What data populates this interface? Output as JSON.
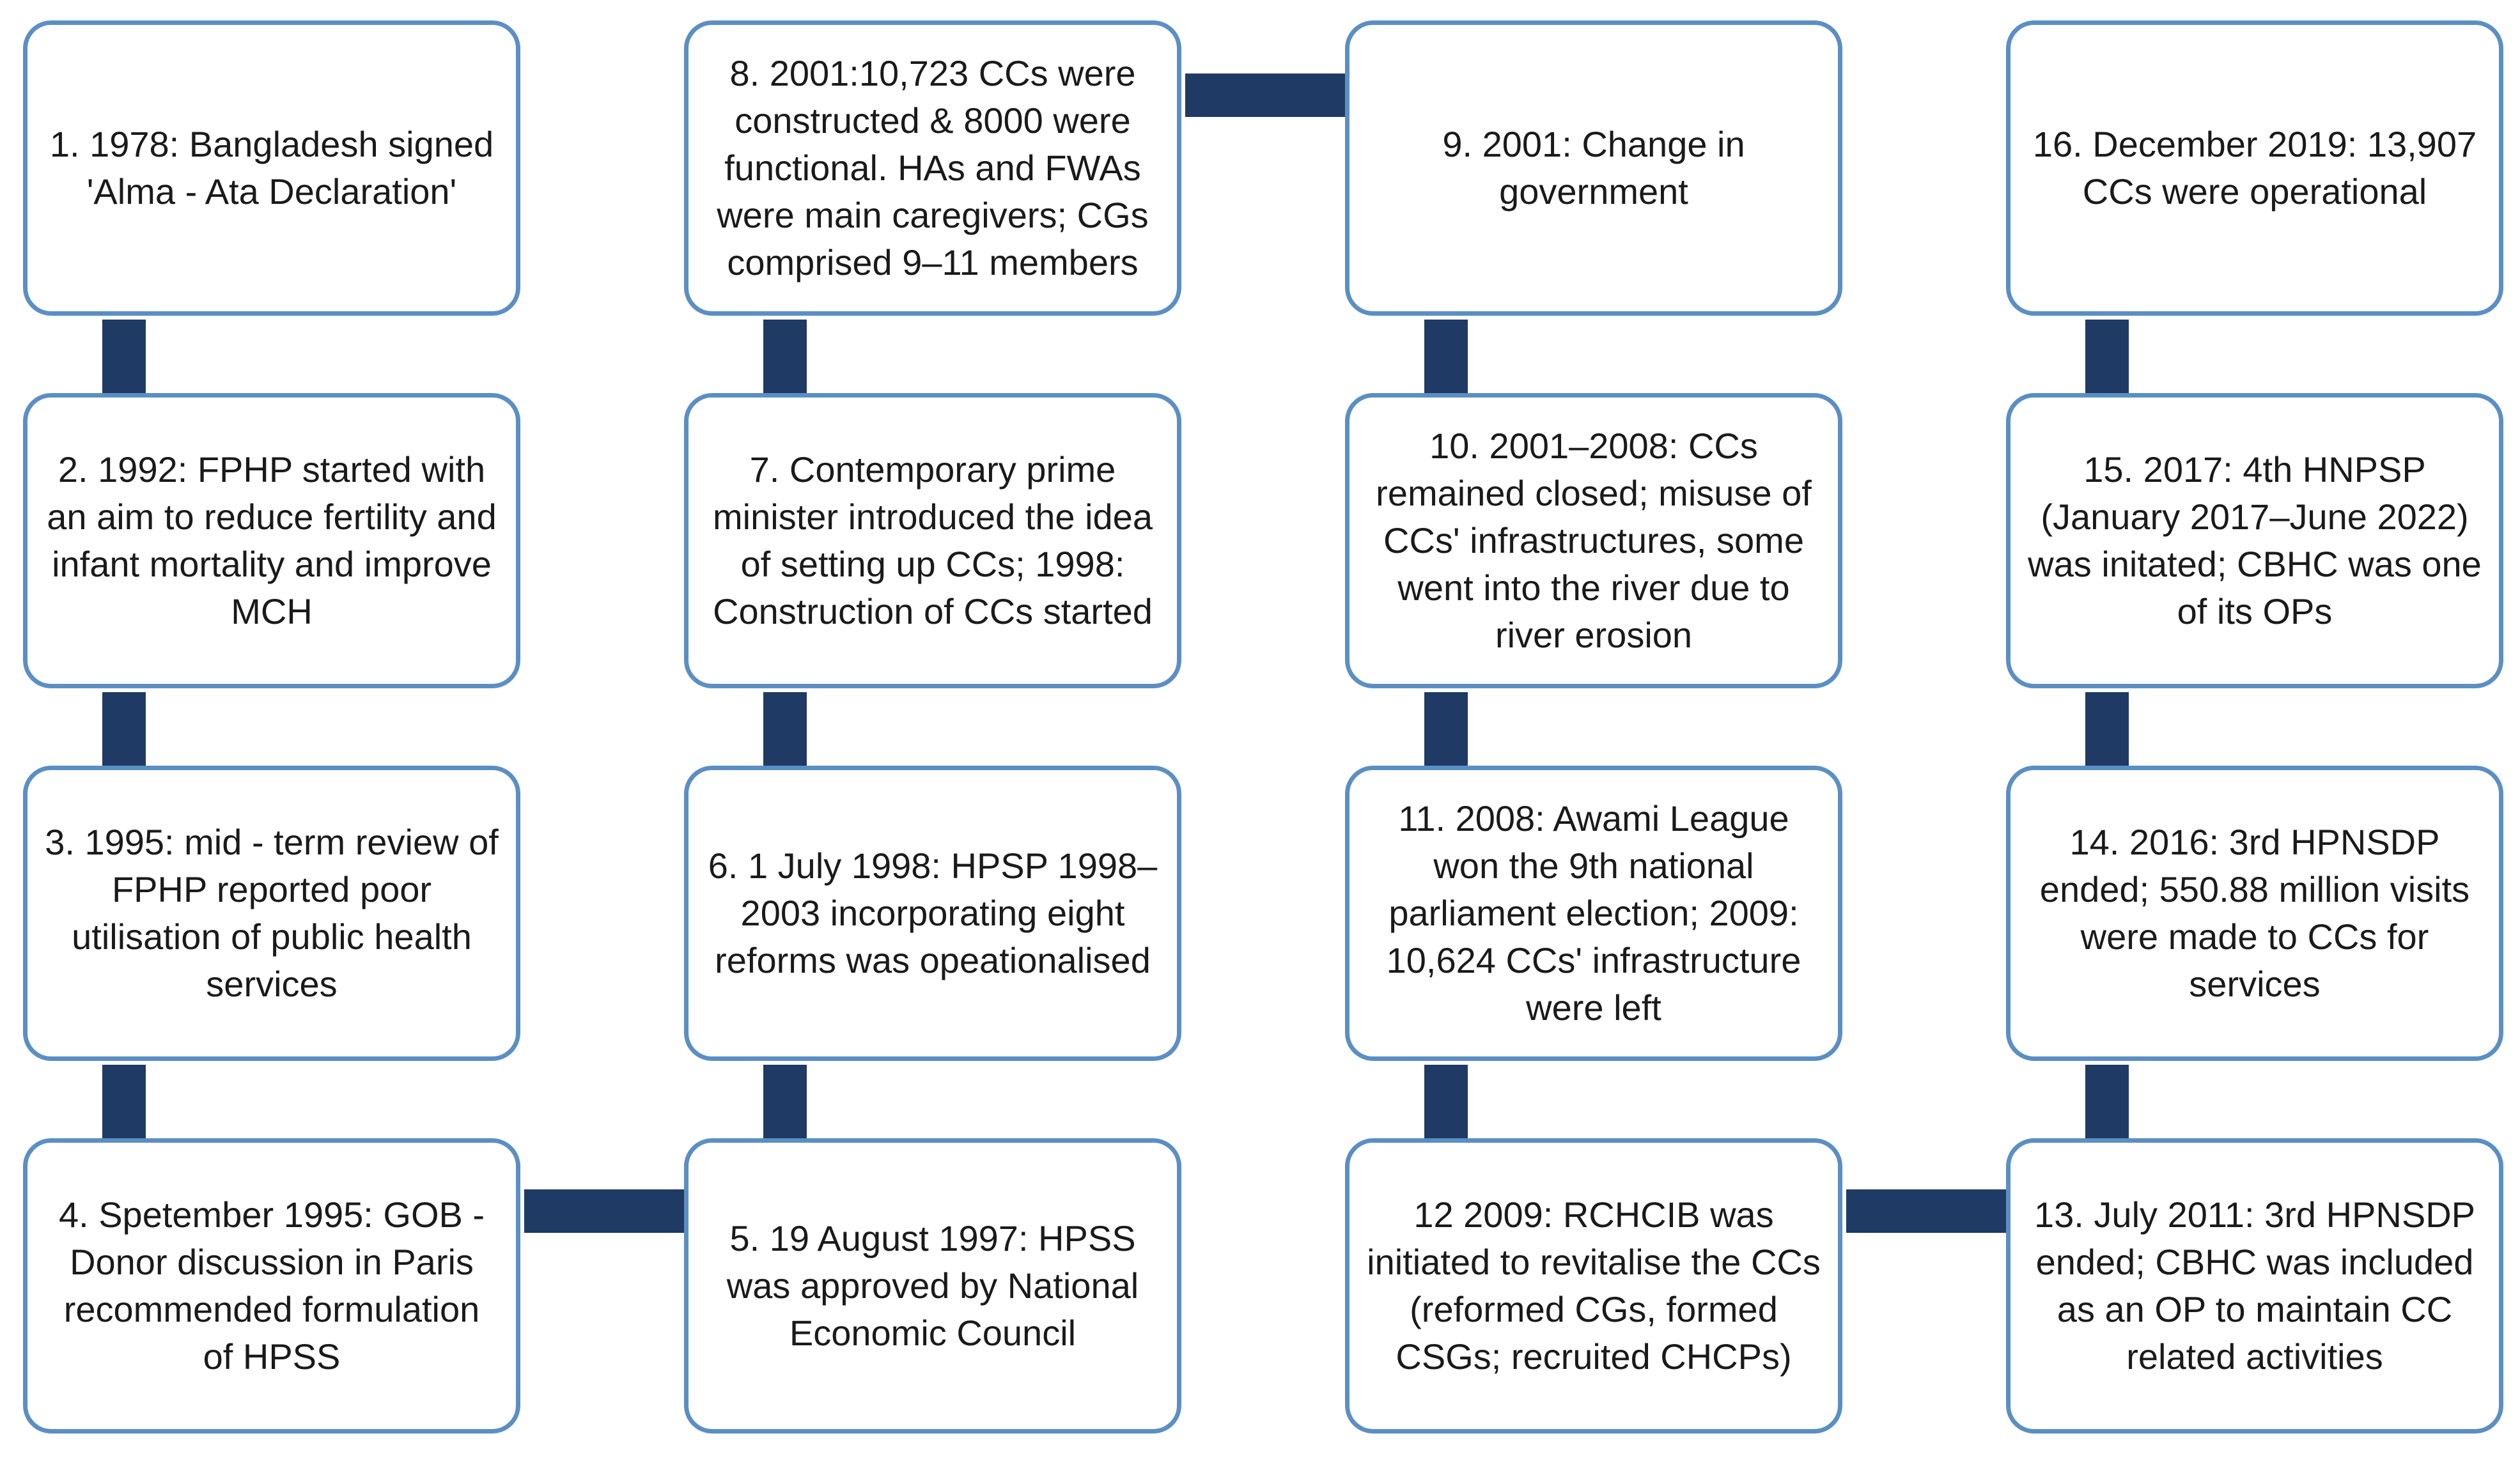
{
  "colors": {
    "box_border": "#5b8fc4",
    "box_fill": "#ffffff",
    "connector": "#1f3a64",
    "text": "#1a1a1a"
  },
  "events": [
    {
      "id": 1,
      "text": "1. 1978: Bangladesh signed 'Alma - Ata Declaration'"
    },
    {
      "id": 2,
      "text": "2. 1992: FPHP started with an aim to reduce fertility and infant mortality and improve MCH"
    },
    {
      "id": 3,
      "text": "3. 1995: mid - term review of FPHP reported poor utilisation of public health services"
    },
    {
      "id": 4,
      "text": "4. Spetember 1995: GOB - Donor discussion in Paris recommended formulation of HPSS"
    },
    {
      "id": 5,
      "text": "5. 19 August 1997: HPSS was approved by National Economic Council"
    },
    {
      "id": 6,
      "text": "6. 1 July 1998: HPSP 1998–2003 incorporating eight reforms was opeationalised"
    },
    {
      "id": 7,
      "text": "7. Contemporary prime minister introduced the idea of setting up CCs; 1998: Construction of CCs started"
    },
    {
      "id": 8,
      "text": "8. 2001:10,723 CCs were constructed & 8000 were functional. HAs and FWAs were main caregivers; CGs comprised 9–11 members"
    },
    {
      "id": 9,
      "text": "9. 2001: Change in government"
    },
    {
      "id": 10,
      "text": "10. 2001–2008: CCs remained closed; misuse of CCs' infrastructures, some went into the river due to river erosion"
    },
    {
      "id": 11,
      "text": "11. 2008: Awami League won the 9th national parliament election; 2009: 10,624 CCs' infrastructure were left"
    },
    {
      "id": 12,
      "text": "12 2009: RCHCIB was initiated to revitalise the CCs (reformed CGs, formed CSGs; recruited CHCPs)"
    },
    {
      "id": 13,
      "text": "13. July 2011: 3rd HPNSDP ended; CBHC was included as an OP to maintain CC related activities"
    },
    {
      "id": 14,
      "text": "14. 2016: 3rd HPNSDP ended; 550.88 million visits were made to CCs for services"
    },
    {
      "id": 15,
      "text": "15. 2017: 4th HNPSP (January 2017–June 2022) was initated; CBHC was one of its OPs"
    },
    {
      "id": 16,
      "text": "16. December 2019: 13,907 CCs were operational"
    }
  ]
}
